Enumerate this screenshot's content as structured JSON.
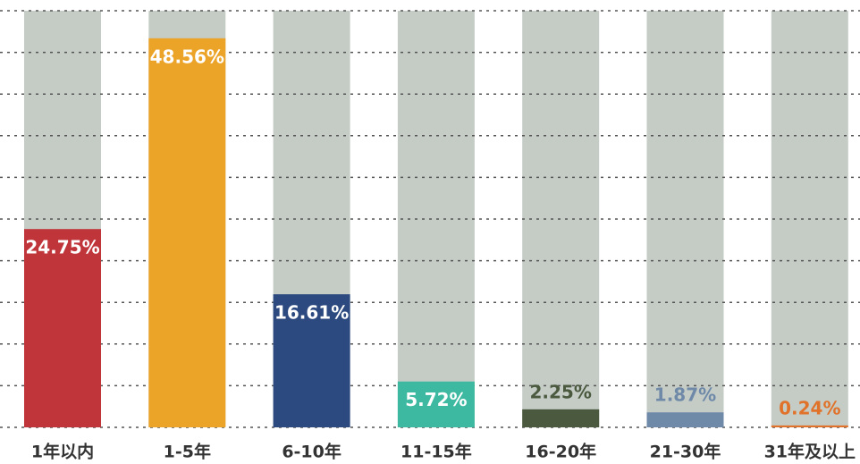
{
  "chart_data": {
    "type": "bar",
    "categories": [
      "1年以内",
      "1-5年",
      "6-10年",
      "11-15年",
      "16-20年",
      "21-30年",
      "31年及以上"
    ],
    "values": [
      24.75,
      48.56,
      16.61,
      5.72,
      2.25,
      1.87,
      0.24
    ],
    "value_labels": [
      "24.75%",
      "48.56%",
      "16.61%",
      "5.72%",
      "2.25%",
      "1.87%",
      "0.24%"
    ],
    "colors": [
      "#c0353a",
      "#eba328",
      "#2c4a7f",
      "#3cb9a0",
      "#4b5a3f",
      "#6f89a8",
      "#e0722a"
    ],
    "background_color": "#c5ccc6",
    "ylim": [
      0,
      52
    ],
    "yticks": [
      0,
      5.2,
      10.4,
      15.6,
      20.8,
      26,
      31.2,
      36.4,
      41.6,
      46.8,
      52
    ],
    "grid": true
  }
}
